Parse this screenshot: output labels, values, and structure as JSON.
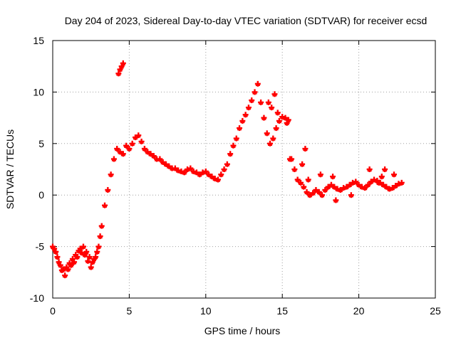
{
  "chart_data": {
    "type": "scatter",
    "title": "Day 204 of 2023, Sidereal Day-to-day VTEC variation (SDTVAR) for receiver ecsd",
    "xlabel": "GPS time / hours",
    "ylabel": "SDTVAR / TECUs",
    "xlim": [
      0,
      25
    ],
    "ylim": [
      -10,
      15
    ],
    "xticks": [
      0,
      5,
      10,
      15,
      20,
      25
    ],
    "yticks": [
      -10,
      -5,
      0,
      5,
      10,
      15
    ],
    "xtick_labels": [
      "0",
      "5",
      "10",
      "15",
      "20",
      "25"
    ],
    "ytick_labels": [
      "-10",
      "-5",
      "0",
      "5",
      "10",
      "15"
    ],
    "grid": true,
    "marker": "+",
    "series": [
      {
        "name": "SDTVAR",
        "color": "#ff0000",
        "x": [
          0.0,
          0.2,
          0.4,
          0.6,
          0.8,
          1.0,
          1.2,
          1.4,
          1.6,
          1.8,
          2.0,
          2.2,
          2.4,
          2.6,
          2.8,
          3.0,
          3.2,
          3.4,
          3.6,
          3.8,
          4.0,
          4.2,
          4.4,
          4.6,
          4.8,
          5.0,
          5.2,
          5.4,
          5.6,
          5.8,
          6.0,
          6.2,
          6.4,
          6.6,
          6.8,
          7.0,
          7.2,
          7.4,
          7.6,
          7.8,
          8.0,
          8.2,
          8.4,
          8.6,
          8.8,
          9.0,
          9.2,
          9.4,
          9.6,
          9.8,
          10.0,
          10.2,
          10.4,
          10.6,
          10.8,
          11.0,
          11.2,
          11.4,
          11.6,
          11.8,
          12.0,
          12.2,
          12.4,
          12.6,
          12.8,
          13.0,
          13.2,
          13.4,
          13.6,
          13.8,
          14.0,
          14.2,
          14.4,
          14.6,
          14.8,
          15.0,
          15.2,
          15.4,
          15.6,
          15.8,
          16.0,
          16.2,
          16.4,
          16.6,
          16.8,
          17.0,
          17.2,
          17.4,
          17.6,
          17.8,
          18.0,
          18.2,
          18.4,
          18.6,
          18.8,
          19.0,
          19.2,
          19.4,
          19.6,
          19.8,
          20.0,
          20.2,
          20.4,
          20.6,
          20.8,
          21.0,
          21.2,
          21.4,
          21.6,
          21.8,
          22.0,
          22.2,
          22.4,
          22.6,
          22.8,
          4.3,
          4.4,
          4.5,
          4.6,
          0.1,
          0.3,
          0.5,
          0.7,
          0.9,
          1.1,
          1.3,
          1.5,
          1.7,
          1.9,
          2.1,
          2.3,
          2.5,
          2.7,
          2.9,
          3.1,
          14.1,
          14.3,
          14.5,
          14.7,
          15.3,
          15.5,
          16.3,
          16.5,
          16.7,
          17.5,
          18.3,
          18.5,
          19.5,
          20.7,
          21.3,
          21.5,
          21.7,
          22.3
        ],
        "y": [
          -5.0,
          -5.5,
          -6.5,
          -7.3,
          -7.8,
          -7.2,
          -6.8,
          -6.5,
          -6.0,
          -5.2,
          -5.0,
          -5.5,
          -6.0,
          -6.5,
          -6.0,
          -5.0,
          -3.0,
          -1.0,
          0.5,
          2.0,
          3.5,
          4.5,
          4.2,
          4.0,
          4.8,
          4.5,
          5.0,
          5.6,
          5.8,
          5.2,
          4.5,
          4.2,
          4.0,
          3.8,
          3.5,
          3.5,
          3.2,
          3.0,
          2.8,
          2.6,
          2.6,
          2.4,
          2.3,
          2.2,
          2.5,
          2.6,
          2.3,
          2.2,
          2.0,
          2.2,
          2.3,
          2.0,
          1.8,
          1.6,
          1.5,
          2.0,
          2.5,
          3.0,
          4.0,
          4.8,
          5.5,
          6.5,
          7.2,
          7.8,
          8.5,
          9.2,
          10.0,
          10.8,
          9.0,
          7.5,
          6.0,
          5.0,
          5.5,
          6.5,
          7.2,
          7.6,
          7.5,
          7.3,
          3.5,
          2.5,
          1.5,
          1.2,
          0.8,
          0.3,
          0.0,
          0.2,
          0.5,
          0.3,
          0.0,
          0.5,
          0.8,
          1.0,
          0.8,
          0.6,
          0.5,
          0.7,
          0.8,
          1.0,
          1.2,
          1.3,
          1.0,
          0.8,
          0.7,
          1.0,
          1.3,
          1.5,
          1.4,
          1.2,
          1.0,
          0.8,
          0.6,
          0.7,
          0.9,
          1.1,
          1.2,
          11.8,
          12.2,
          12.5,
          12.8,
          -5.2,
          -6.0,
          -6.8,
          -7.2,
          -7.0,
          -6.6,
          -6.2,
          -5.8,
          -5.4,
          -5.6,
          -5.8,
          -6.4,
          -7.0,
          -6.2,
          -5.5,
          -4.0,
          9.0,
          8.5,
          9.8,
          8.0,
          7.0,
          3.5,
          3.0,
          4.5,
          1.5,
          2.0,
          1.8,
          -0.5,
          0.0,
          2.5,
          1.2,
          1.8,
          2.5,
          2.0
        ]
      }
    ]
  }
}
